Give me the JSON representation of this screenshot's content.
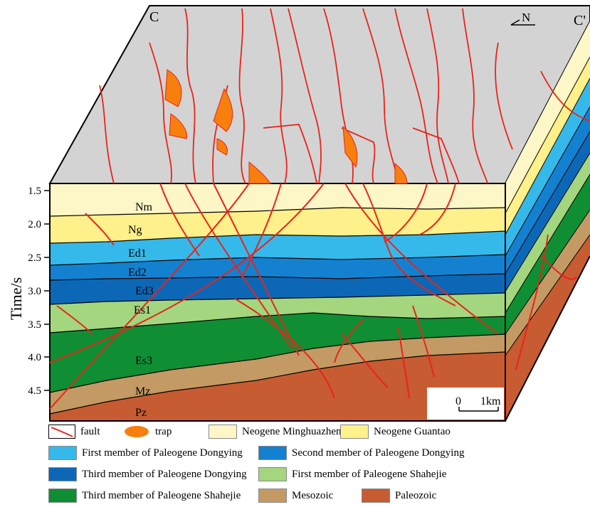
{
  "corner_labels": {
    "left": "C",
    "right": "C'"
  },
  "north_label": "N",
  "axis": {
    "title": "Time/s",
    "ticks": [
      "1.5",
      "2.0",
      "2.5",
      "3.0",
      "3.5",
      "4.0",
      "4.5"
    ]
  },
  "unit_labels": {
    "nm": "Nm",
    "ng": "Ng",
    "ed1": "Ed1",
    "ed2": "Ed2",
    "ed3": "Ed3",
    "es1": "Es1",
    "es3": "Es3",
    "mz": "Mz",
    "pz": "Pz"
  },
  "scale_bar": {
    "start": "0",
    "end": "1km"
  },
  "colors": {
    "minghuazhen": "#fdf6c6",
    "guantao": "#fef08a",
    "ed1": "#35b9ea",
    "ed2": "#1481d0",
    "ed3": "#0c68b7",
    "es1": "#a3d67e",
    "es3": "#0f8e34",
    "mesozoic": "#c39a63",
    "paleozoic": "#c75b31",
    "surface": "#d3d3d3",
    "fault": "#e8241b",
    "trap": "#f77f0e"
  },
  "legend": [
    {
      "label": "fault",
      "color": "#e8241b",
      "kind": "fault-icon"
    },
    {
      "label": "trap",
      "color": "#f77f0e",
      "kind": "trap-icon"
    },
    {
      "label": "Neogene Minghuazhen",
      "color": "#fdf6c6",
      "kind": "box"
    },
    {
      "label": "Neogene Guantao",
      "color": "#fef08a",
      "kind": "box"
    },
    {
      "label": "First member of Paleogene Dongying",
      "color": "#35b9ea",
      "kind": "box"
    },
    {
      "label": "Second member of Paleogene Dongying",
      "color": "#1481d0",
      "kind": "box"
    },
    {
      "label": "Third member of Paleogene Dongying",
      "color": "#0c68b7",
      "kind": "box"
    },
    {
      "label": "First member of Paleogene Shahejie",
      "color": "#a3d67e",
      "kind": "box"
    },
    {
      "label": "Third member of Paleogene Shahejie",
      "color": "#0f8e34",
      "kind": "box"
    },
    {
      "label": "Mesozoic",
      "color": "#c39a63",
      "kind": "box"
    },
    {
      "label": "Paleozoic",
      "color": "#c75b31",
      "kind": "box"
    }
  ]
}
